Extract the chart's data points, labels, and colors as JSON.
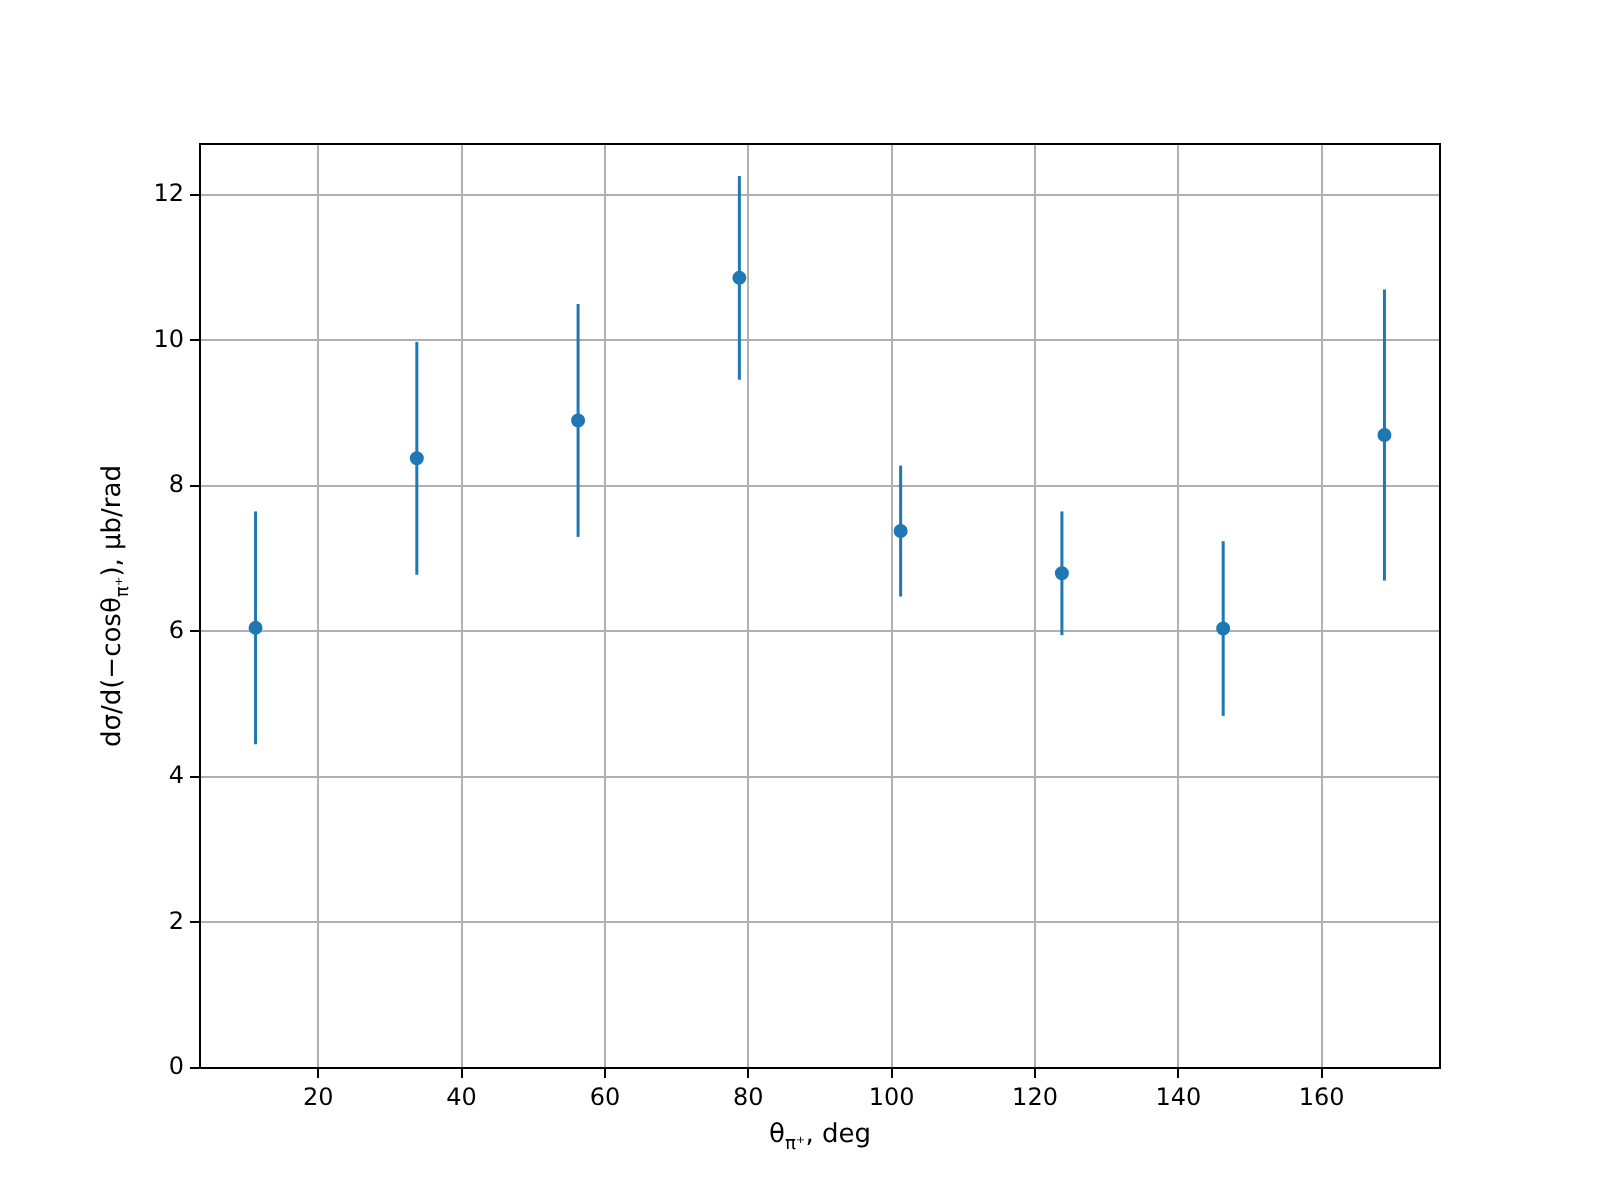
{
  "chart_data": {
    "type": "scatter",
    "xlabel": "θ$_{π⁺}$, deg",
    "ylabel": "dσ/d(−cosθ$_{π⁺}$), μb/rad",
    "x": [
      11.25,
      33.75,
      56.25,
      78.75,
      101.25,
      123.75,
      146.25,
      168.75
    ],
    "series": [
      {
        "color": "#1f77b4",
        "values": [
          6.05,
          8.38,
          8.9,
          10.86,
          7.38,
          6.8,
          6.04,
          8.7
        ],
        "errors": [
          1.6,
          1.6,
          1.6,
          1.4,
          0.9,
          0.85,
          1.2,
          2.0
        ]
      }
    ],
    "xlim": [
      3.5,
      176.5
    ],
    "xticks": [
      20,
      40,
      60,
      80,
      100,
      120,
      140,
      160
    ],
    "ylim": [
      0,
      12.7
    ],
    "yticks": [
      0,
      2,
      4,
      6,
      8,
      10,
      12
    ],
    "grid": true,
    "marker": "circle",
    "legend": false
  }
}
